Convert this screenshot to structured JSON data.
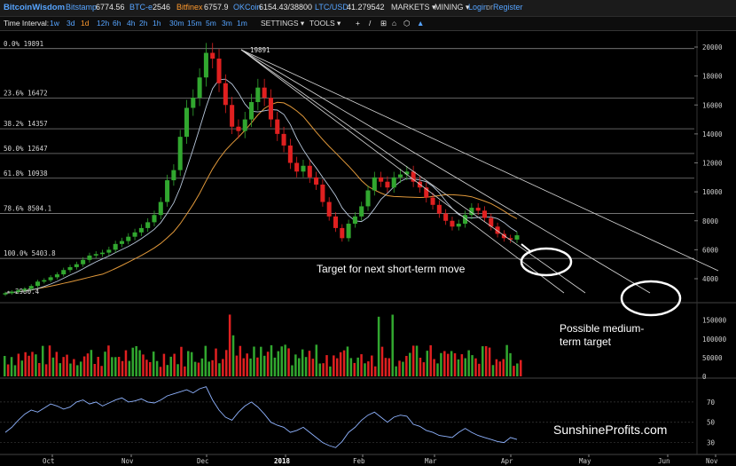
{
  "header": {
    "brand": "BitcoinWisdom",
    "tickers": [
      {
        "name": "Bitstamp",
        "value": "6774.56",
        "color": "#56a4ff"
      },
      {
        "name": "BTC-e",
        "value": "2546",
        "color": "#56a4ff"
      },
      {
        "name": "Bitfinex",
        "value": "6757.9",
        "color": "#ff9a2e"
      },
      {
        "name": "OKCoin",
        "value": "6154.43/38800",
        "color": "#56a4ff"
      },
      {
        "name": "LTC/USD",
        "value": "41.279542",
        "color": "#56a4ff"
      }
    ],
    "menus": [
      "MARKETS ▾",
      "MINING ▾"
    ],
    "login": "Login",
    "or": "or",
    "register": "Register"
  },
  "toolbar": {
    "interval_label": "Time Interval:",
    "intervals": [
      "1w",
      "3d",
      "1d",
      "12h",
      "6h",
      "4h",
      "2h",
      "1h",
      "30m",
      "15m",
      "5m",
      "3m",
      "1m"
    ],
    "active_interval": "1d",
    "settings": "SETTINGS ▾",
    "tools": "TOOLS ▾",
    "tool_icons": [
      "+",
      "/",
      "⊞",
      "⌂",
      "⬡",
      "🔔"
    ]
  },
  "fib_levels": [
    {
      "label": "0.0% 19891",
      "value": 19891
    },
    {
      "label": "23.6% 16472",
      "value": 16472
    },
    {
      "label": "38.2% 14357",
      "value": 14357
    },
    {
      "label": "50.0% 12647",
      "value": 12647
    },
    {
      "label": "61.8% 10938",
      "value": 10938
    },
    {
      "label": "78.6% 8504.1",
      "value": 8504.1
    },
    {
      "label": "100.0% 5403.8",
      "value": 5403.8
    }
  ],
  "price_labels": {
    "high": "19891",
    "low": "2980.4"
  },
  "axes": {
    "price_ticks": [
      "20000",
      "18000",
      "16000",
      "14000",
      "12000",
      "10000",
      "8000",
      "6000",
      "4000"
    ],
    "volume_ticks": [
      "150000",
      "100000",
      "50000",
      "0"
    ],
    "rsi_ticks": [
      "70",
      "50",
      "30"
    ],
    "x_ticks": [
      "Oct",
      "Nov",
      "Dec",
      "2018",
      "Feb",
      "Mar",
      "Apr",
      "May",
      "Jun",
      "Nov"
    ]
  },
  "annotations": {
    "short_term": "Target for next short-term move",
    "medium_line1": "Possible medium-",
    "medium_line2": "term target",
    "watermark": "SunshineProfits.com"
  },
  "colors": {
    "up": "#31a72f",
    "down": "#e02020",
    "ma_fast": "#b8c8dc",
    "ma_slow": "#e0983a",
    "rsi": "#8fb3ff",
    "grid": "#3a3a3a"
  },
  "price_series": [
    3000,
    3100,
    3200,
    3300,
    3500,
    3800,
    3900,
    4100,
    4300,
    4600,
    4800,
    5000,
    5300,
    5600,
    5700,
    5800,
    6000,
    6400,
    6600,
    6900,
    7200,
    7500,
    7900,
    8400,
    9300,
    10800,
    11500,
    13800,
    15800,
    16500,
    17900,
    19600,
    19200,
    17500,
    16000,
    14500,
    14200,
    15000,
    16200,
    17200,
    16500,
    15000,
    14000,
    13200,
    12000,
    11400,
    11800,
    11000,
    10500,
    9300,
    8300,
    7500,
    6800,
    7800,
    8300,
    9000,
    10100,
    11000,
    10700,
    10300,
    11000,
    11200,
    11400,
    10700,
    10300,
    9600,
    9100,
    8500,
    8000,
    7600,
    7800,
    8400,
    8900,
    8700,
    8200,
    7600,
    7100,
    6800,
    6700,
    7000
  ],
  "rsi_series": [
    40,
    45,
    52,
    58,
    62,
    60,
    64,
    68,
    66,
    63,
    65,
    70,
    72,
    68,
    70,
    66,
    69,
    72,
    74,
    70,
    71,
    73,
    70,
    69,
    72,
    76,
    78,
    80,
    82,
    79,
    83,
    85,
    72,
    62,
    55,
    52,
    60,
    66,
    70,
    65,
    58,
    50,
    47,
    45,
    40,
    42,
    45,
    40,
    35,
    30,
    27,
    25,
    31,
    40,
    45,
    52,
    57,
    60,
    55,
    50,
    55,
    57,
    56,
    48,
    46,
    42,
    40,
    37,
    36,
    35,
    40,
    44,
    40,
    37,
    35,
    33,
    31,
    30,
    35,
    33
  ]
}
